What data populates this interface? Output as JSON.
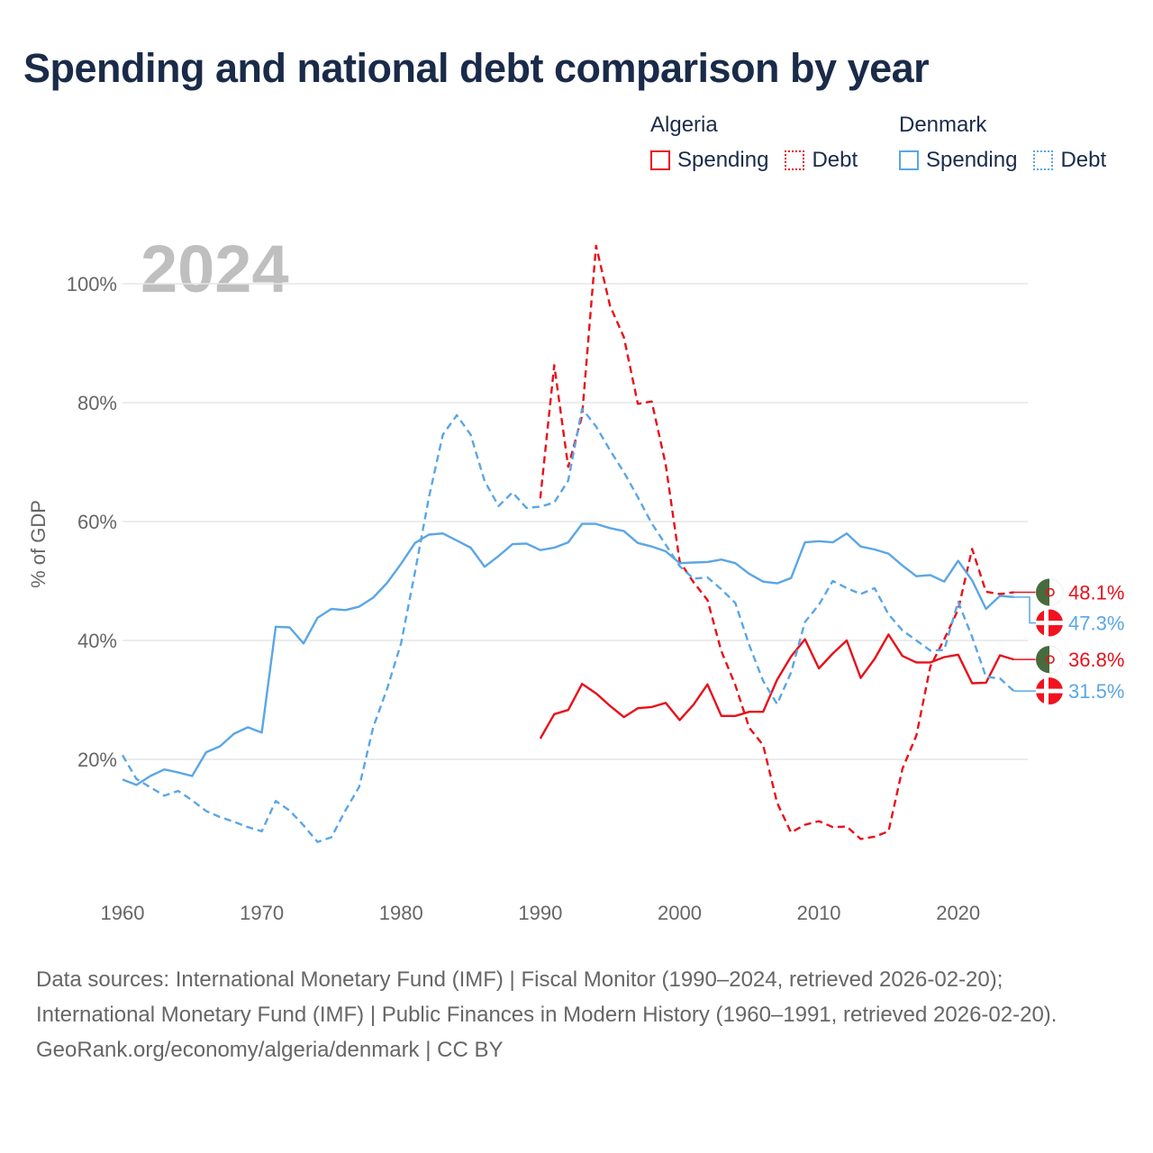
{
  "title": "Spending and national debt comparison by year",
  "legend": {
    "groups": [
      {
        "country": "Algeria",
        "color": "#e8101a",
        "items": [
          {
            "label": "Spending",
            "style": "solid"
          },
          {
            "label": "Debt",
            "style": "dotted"
          }
        ]
      },
      {
        "country": "Denmark",
        "color": "#5aa6e6",
        "items": [
          {
            "label": "Spending",
            "style": "solid"
          },
          {
            "label": "Debt",
            "style": "dotted"
          }
        ]
      }
    ]
  },
  "footer": {
    "sources": "Data sources: International Monetary Fund (IMF) | Fiscal Monitor (1990–2024, retrieved 2026-02-20); International Monetary Fund (IMF) | Public Finances in Modern History (1960–1991, retrieved 2026-02-20).",
    "credit": "GeoRank.org/economy/algeria/denmark | CC BY"
  },
  "chart_data": {
    "type": "line",
    "year_watermark": "2024",
    "ylabel": "% of GDP",
    "xlim": [
      1960,
      2025
    ],
    "ylim": [
      0,
      108
    ],
    "x_ticks": [
      1960,
      1970,
      1980,
      1990,
      2000,
      2010,
      2020
    ],
    "x_tick_labels": [
      "1960",
      "1970",
      "1980",
      "1990",
      "2000",
      "2010",
      "2020"
    ],
    "y_ticks": [
      20,
      40,
      60,
      80,
      100
    ],
    "y_tick_labels": [
      "20%",
      "40%",
      "60%",
      "80%",
      "100%"
    ],
    "series": [
      {
        "name": "Algeria Spending",
        "country": "Algeria",
        "measure": "Spending",
        "color": "#e8101a",
        "dash": "solid",
        "end_label": "36.8%",
        "x": [
          1990,
          1991,
          1992,
          1993,
          1994,
          1995,
          1996,
          1997,
          1998,
          1999,
          2000,
          2001,
          2002,
          2003,
          2004,
          2005,
          2006,
          2007,
          2008,
          2009,
          2010,
          2011,
          2012,
          2013,
          2014,
          2015,
          2016,
          2017,
          2018,
          2019,
          2020,
          2021,
          2022,
          2023,
          2024
        ],
        "y": [
          23.5,
          27.6,
          28.3,
          32.7,
          31.1,
          29.0,
          27.1,
          28.6,
          28.8,
          29.5,
          26.6,
          29.2,
          32.6,
          27.3,
          27.3,
          28.0,
          28.0,
          33.4,
          37.3,
          40.2,
          35.3,
          37.8,
          40.0,
          33.7,
          36.9,
          41.0,
          37.4,
          36.3,
          36.3,
          37.2,
          37.6,
          32.8,
          32.9,
          37.5,
          36.8
        ]
      },
      {
        "name": "Algeria Debt",
        "country": "Algeria",
        "measure": "Debt",
        "color": "#e8101a",
        "dash": "dashed",
        "end_label": "48.1%",
        "x": [
          1990,
          1991,
          1992,
          1993,
          1994,
          1995,
          1996,
          1997,
          1998,
          1999,
          2000,
          2001,
          2002,
          2003,
          2004,
          2005,
          2006,
          2007,
          2008,
          2009,
          2010,
          2011,
          2012,
          2013,
          2014,
          2015,
          2016,
          2017,
          2018,
          2019,
          2020,
          2021,
          2022,
          2023,
          2024
        ],
        "y": [
          63.9,
          86.3,
          69.2,
          77.8,
          106.4,
          96.3,
          91.0,
          79.8,
          80.2,
          69.6,
          53.3,
          49.8,
          46.8,
          38.2,
          32.5,
          25.3,
          22.4,
          12.7,
          7.7,
          9.0,
          9.6,
          8.6,
          8.7,
          6.6,
          7.0,
          7.9,
          18.4,
          24.0,
          35.6,
          40.2,
          45.2,
          55.4,
          48.2,
          47.8,
          48.1
        ]
      },
      {
        "name": "Denmark Spending",
        "country": "Denmark",
        "measure": "Spending",
        "color": "#5aa6e6",
        "dash": "solid",
        "end_label": "47.3%",
        "x": [
          1960,
          1961,
          1962,
          1963,
          1964,
          1965,
          1966,
          1967,
          1968,
          1969,
          1970,
          1971,
          1972,
          1973,
          1974,
          1975,
          1976,
          1977,
          1978,
          1979,
          1980,
          1981,
          1982,
          1983,
          1984,
          1985,
          1986,
          1987,
          1988,
          1989,
          1990,
          1991,
          1992,
          1993,
          1994,
          1995,
          1996,
          1997,
          1998,
          1999,
          2000,
          2001,
          2002,
          2003,
          2004,
          2005,
          2006,
          2007,
          2008,
          2009,
          2010,
          2011,
          2012,
          2013,
          2014,
          2015,
          2016,
          2017,
          2018,
          2019,
          2020,
          2021,
          2022,
          2023,
          2024
        ],
        "y": [
          16.6,
          15.7,
          17.2,
          18.3,
          17.8,
          17.2,
          21.2,
          22.2,
          24.3,
          25.4,
          24.5,
          42.3,
          42.2,
          39.5,
          43.8,
          45.3,
          45.1,
          45.7,
          47.2,
          49.7,
          52.9,
          56.4,
          57.8,
          58.0,
          56.8,
          55.6,
          52.4,
          54.2,
          56.2,
          56.3,
          55.2,
          55.6,
          56.5,
          59.6,
          59.6,
          58.9,
          58.4,
          56.4,
          55.8,
          55.0,
          53.0,
          53.1,
          53.2,
          53.6,
          53.0,
          51.2,
          49.9,
          49.6,
          50.5,
          56.5,
          56.7,
          56.5,
          58.0,
          55.8,
          55.3,
          54.6,
          52.6,
          50.8,
          51.0,
          49.9,
          53.4,
          50.1,
          45.3,
          47.5,
          47.3
        ]
      },
      {
        "name": "Denmark Debt",
        "country": "Denmark",
        "measure": "Debt",
        "color": "#5aa6e6",
        "dash": "dashed",
        "end_label": "31.5%",
        "x": [
          1960,
          1961,
          1962,
          1963,
          1964,
          1965,
          1966,
          1967,
          1968,
          1969,
          1970,
          1971,
          1972,
          1973,
          1974,
          1975,
          1976,
          1977,
          1978,
          1979,
          1980,
          1981,
          1982,
          1983,
          1984,
          1985,
          1986,
          1987,
          1988,
          1989,
          1990,
          1991,
          1992,
          1993,
          1994,
          1995,
          1996,
          1997,
          1998,
          1999,
          2000,
          2001,
          2002,
          2003,
          2004,
          2005,
          2006,
          2007,
          2008,
          2009,
          2010,
          2011,
          2012,
          2013,
          2014,
          2015,
          2016,
          2017,
          2018,
          2019,
          2020,
          2021,
          2022,
          2023,
          2024
        ],
        "y": [
          20.7,
          16.7,
          15.3,
          13.9,
          14.7,
          13.1,
          11.3,
          10.3,
          9.5,
          8.6,
          7.9,
          13.0,
          11.4,
          8.9,
          6.1,
          6.9,
          11.4,
          15.4,
          25.4,
          31.9,
          39.5,
          51.5,
          64.1,
          74.6,
          77.9,
          74.6,
          66.8,
          62.6,
          64.9,
          62.3,
          62.5,
          63.2,
          66.9,
          79.0,
          76.0,
          72.0,
          68.3,
          64.1,
          59.7,
          56.1,
          52.5,
          50.4,
          50.6,
          48.6,
          46.3,
          39.2,
          33.2,
          29.3,
          34.6,
          43.1,
          46.0,
          50.0,
          48.8,
          47.8,
          48.8,
          44.4,
          41.7,
          40.0,
          38.3,
          38.4,
          46.5,
          40.6,
          33.9,
          33.6,
          31.5
        ]
      }
    ]
  }
}
